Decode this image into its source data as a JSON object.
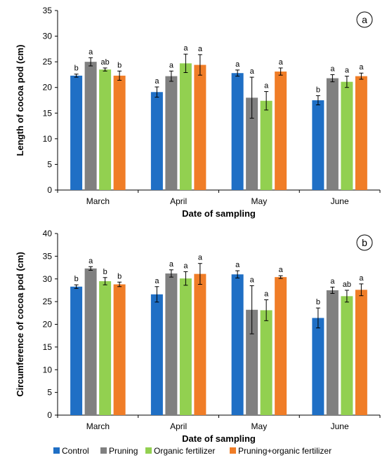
{
  "colors": {
    "Control": "#1f6fc5",
    "Pruning": "#808080",
    "Organic fertilizer": "#92d050",
    "Pruning+organic fertilizer": "#f07d27"
  },
  "legend": [
    "Control",
    "Pruning",
    "Organic fertilizer",
    "Pruning+organic fertilizer"
  ],
  "chart_data": [
    {
      "type": "bar",
      "panel_label": "a",
      "xlabel": "Date of sampling",
      "ylabel": "Length of cocoa pod (cm)",
      "ylim": [
        0,
        35
      ],
      "yticks": [
        0,
        5,
        10,
        15,
        20,
        25,
        30,
        35
      ],
      "categories": [
        "March",
        "April",
        "May",
        "June"
      ],
      "series": [
        {
          "name": "Control",
          "values": [
            22.3,
            19.1,
            22.8,
            17.5
          ],
          "errors": [
            0.3,
            1.0,
            0.6,
            0.9
          ],
          "letters": [
            "b",
            "a",
            "a",
            "b"
          ]
        },
        {
          "name": "Pruning",
          "values": [
            25.0,
            22.2,
            18.0,
            21.8
          ],
          "errors": [
            0.8,
            1.0,
            4.0,
            0.7
          ],
          "letters": [
            "a",
            "a",
            "a",
            "a"
          ]
        },
        {
          "name": "Organic fertilizer",
          "values": [
            23.5,
            24.7,
            17.4,
            21.1
          ],
          "errors": [
            0.3,
            1.8,
            1.8,
            1.1
          ],
          "letters": [
            "ab",
            "a",
            "a",
            "a"
          ]
        },
        {
          "name": "Pruning+organic fertilizer",
          "values": [
            22.3,
            24.4,
            23.1,
            22.2
          ],
          "errors": [
            0.9,
            2.0,
            0.7,
            0.6
          ],
          "letters": [
            "b",
            "a",
            "a",
            "a"
          ]
        }
      ]
    },
    {
      "type": "bar",
      "panel_label": "b",
      "xlabel": "Date of sampling",
      "ylabel": "Circumference of cocoa pod (cm)",
      "ylim": [
        0,
        40
      ],
      "yticks": [
        0,
        5,
        10,
        15,
        20,
        25,
        30,
        35,
        40
      ],
      "categories": [
        "March",
        "April",
        "May",
        "June"
      ],
      "series": [
        {
          "name": "Control",
          "values": [
            28.3,
            26.6,
            31.0,
            21.4
          ],
          "errors": [
            0.4,
            1.7,
            0.8,
            2.2
          ],
          "letters": [
            "b",
            "a",
            "a",
            "b"
          ]
        },
        {
          "name": "Pruning",
          "values": [
            32.3,
            31.2,
            23.2,
            27.5
          ],
          "errors": [
            0.4,
            0.8,
            5.3,
            0.7
          ],
          "letters": [
            "a",
            "a",
            "a",
            "a"
          ]
        },
        {
          "name": "Organic fertilizer",
          "values": [
            29.5,
            30.1,
            23.1,
            26.2
          ],
          "errors": [
            0.8,
            1.5,
            2.3,
            1.3
          ],
          "letters": [
            "b",
            "a",
            "a",
            "ab"
          ]
        },
        {
          "name": "Pruning+organic fertilizer",
          "values": [
            28.8,
            31.1,
            30.4,
            27.6
          ],
          "errors": [
            0.5,
            2.3,
            0.3,
            1.3
          ],
          "letters": [
            "b",
            "a",
            "a",
            "a"
          ]
        }
      ]
    }
  ]
}
